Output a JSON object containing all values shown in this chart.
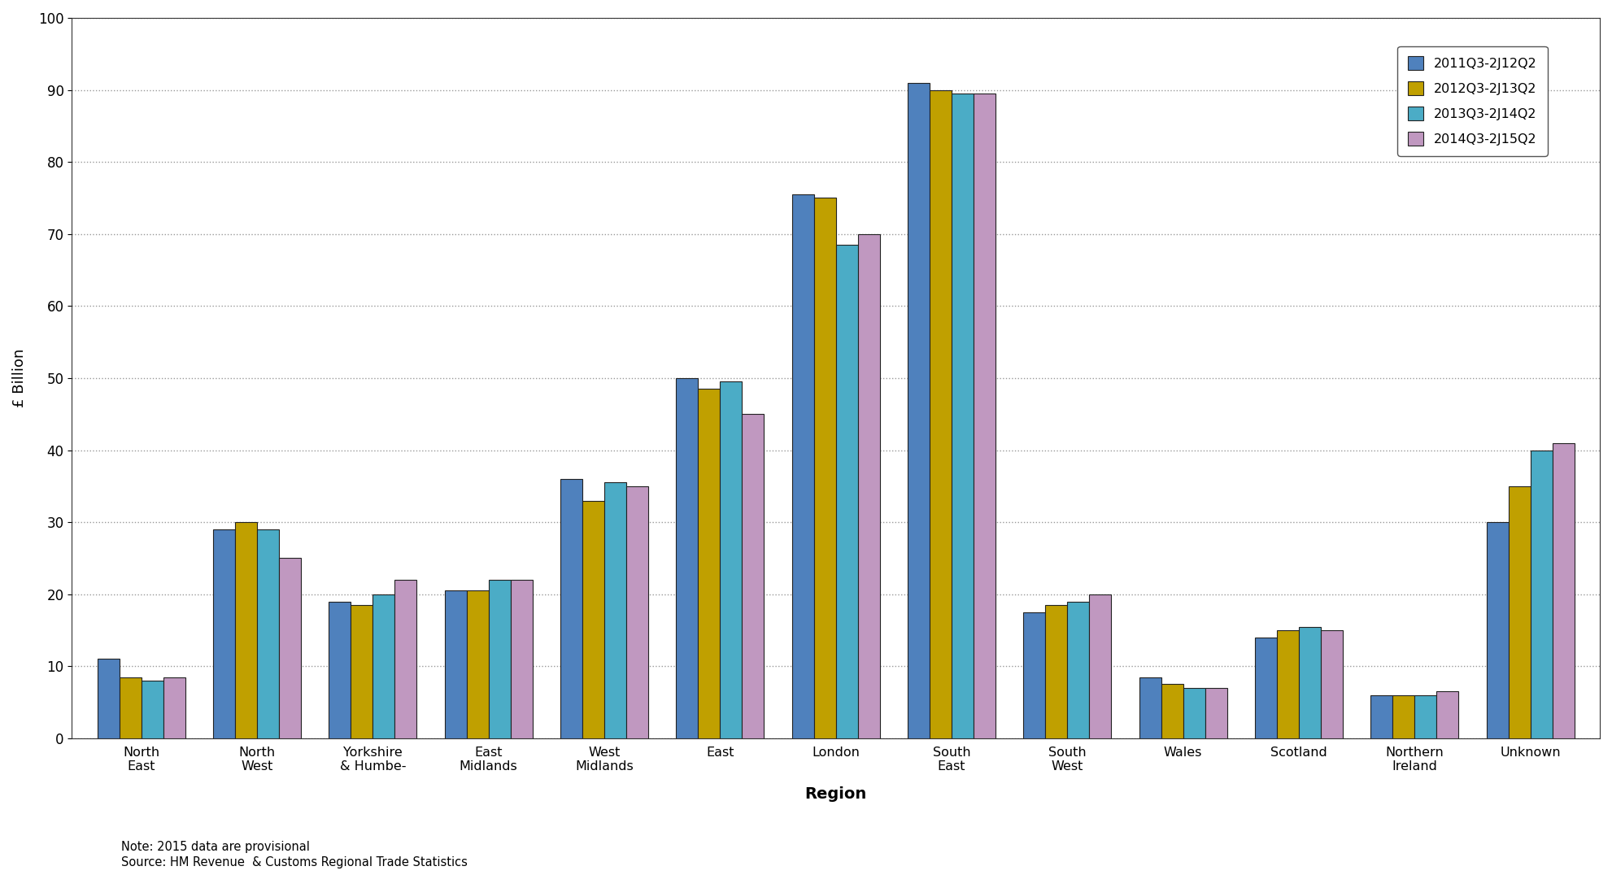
{
  "ylabel": "£ Billion",
  "xlabel": "Region",
  "ylim": [
    0,
    100
  ],
  "yticks": [
    0,
    10,
    20,
    30,
    40,
    50,
    60,
    70,
    80,
    90,
    100
  ],
  "categories": [
    "North\nEast",
    "North\nWest",
    "Yorkshire\n& Humbe-",
    "East\nMidlands",
    "West\nMidlands",
    "East",
    "London",
    "South\nEast",
    "South\nWest",
    "Wales",
    "Scotland",
    "Northern\nIreland",
    "Unknown"
  ],
  "series": {
    "2011Q3-2J12Q2": [
      11,
      29,
      19,
      20.5,
      36,
      50,
      75.5,
      91,
      17.5,
      8.5,
      14,
      6,
      30
    ],
    "2012Q3-2J13Q2": [
      8.5,
      30,
      18.5,
      20.5,
      33,
      48.5,
      75,
      90,
      18.5,
      7.5,
      15,
      6,
      35
    ],
    "2013Q3-2J14Q2": [
      8,
      29,
      20,
      22,
      35.5,
      49.5,
      68.5,
      89.5,
      19,
      7,
      15.5,
      6,
      40
    ],
    "2014Q3-2J15Q2": [
      8.5,
      25,
      22,
      22,
      35,
      45,
      70,
      89.5,
      20,
      7,
      15,
      6.5,
      41
    ]
  },
  "series_labels": [
    "2011Q3-2J12Q2",
    "2012Q3-2J13Q2",
    "2013Q3-2J14Q2",
    "2014Q3-2J15Q2"
  ],
  "legend_labels": [
    "2011Q3-2J12Q2",
    "2012Q3-2J13Q2",
    "2013Q3-2J14Q2",
    "2014Q3-2J15Q2"
  ],
  "bar_colors": [
    "#4f81bd",
    "#c0a000",
    "#4bacc6",
    "#c098c0"
  ],
  "bar_edge_color": "#222222",
  "background_color": "#FFFFFF",
  "plot_bg_color": "#FFFFFF",
  "grid_color": "#999999",
  "note_line1": "Note: 2015 data are provisional",
  "note_line2": "Source: HM Revenue  & Customs Regional Trade Statistics"
}
